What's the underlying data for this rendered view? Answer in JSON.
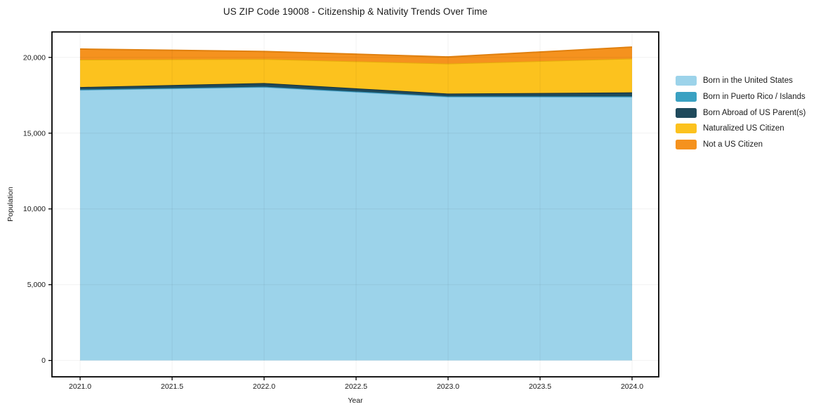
{
  "chart_data": {
    "type": "area",
    "stacked": true,
    "title": "US ZIP Code 19008 - Citizenship & Nativity Trends Over Time",
    "xlabel": "Year",
    "ylabel": "Population",
    "x": [
      2021,
      2022,
      2023,
      2024
    ],
    "series": [
      {
        "name": "Born in the United States",
        "color": "#9CD3EA",
        "edge_color": "#79badb",
        "values": [
          17850,
          18040,
          17400,
          17390
        ]
      },
      {
        "name": "Born in Puerto Rico / Islands",
        "color": "#3AA1C2",
        "edge_color": "#2d8bad",
        "values": [
          30,
          30,
          30,
          40
        ]
      },
      {
        "name": "Born Abroad of US Parent(s)",
        "color": "#1F4A5C",
        "edge_color": "#132f3c",
        "values": [
          160,
          235,
          180,
          260
        ]
      },
      {
        "name": "Naturalized US Citizen",
        "color": "#FCC21E",
        "edge_color": "#e5ac0c",
        "values": [
          1810,
          1585,
          1980,
          2230
        ]
      },
      {
        "name": "Not a US Citizen",
        "color": "#F5921E",
        "edge_color": "#e0800f",
        "values": [
          700,
          500,
          440,
          760
        ]
      }
    ],
    "xticks": [
      2021.0,
      2021.5,
      2022.0,
      2022.5,
      2023.0,
      2023.5,
      2024.0
    ],
    "xtick_labels": [
      "2021.0",
      "2021.5",
      "2022.0",
      "2022.5",
      "2023.0",
      "2023.5",
      "2024.0"
    ],
    "yticks": [
      0,
      5000,
      10000,
      15000,
      20000
    ],
    "ytick_labels": [
      "0",
      "5,000",
      "10,000",
      "15,000",
      "20,000"
    ],
    "xlim": [
      2020.847,
      2024.145
    ],
    "ylim": [
      -1080,
      21680
    ],
    "grid": true,
    "legend_position": "right",
    "background_color": "#ffffff",
    "gridline_color": "rgba(0,0,0,0.055)",
    "border_color": "#000000"
  }
}
